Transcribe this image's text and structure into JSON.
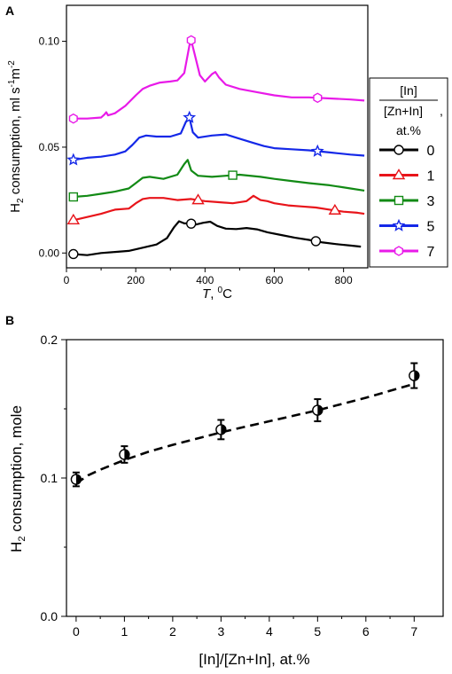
{
  "chart_data": [
    {
      "panel_label": "A",
      "type": "line",
      "xlabel": "T, °C",
      "xlabel_parts": {
        "var": "T",
        "sep": ", ",
        "sup": "0",
        "unit": "C"
      },
      "ylabel": "H2 consumption, ml s-1m-2",
      "xlim": [
        0,
        870
      ],
      "ylim": [
        -0.007,
        0.117
      ],
      "x_ticks": [
        0,
        200,
        400,
        600,
        800
      ],
      "y_ticks": [
        0.0,
        0.05,
        0.1
      ],
      "y_tick_labels": [
        "0.00",
        "0.05",
        "0.10"
      ],
      "legend": {
        "placement": "right",
        "title_line1": "[In]",
        "title_line2": "[Zn+In]",
        "title_line3": "at.%",
        "title": "[In] / [Zn+In], at.%"
      },
      "series": [
        {
          "name": "0",
          "color": "#000000",
          "marker": "circle",
          "x": [
            20,
            60,
            100,
            140,
            180,
            220,
            260,
            290,
            310,
            325,
            340,
            355,
            375,
            395,
            415,
            435,
            460,
            490,
            520,
            550,
            580,
            620,
            660,
            700,
            740,
            780,
            820,
            850
          ],
          "y": [
            -0.0005,
            -0.001,
            0.0,
            0.0005,
            0.001,
            0.0025,
            0.004,
            0.007,
            0.012,
            0.015,
            0.014,
            0.014,
            0.0135,
            0.0143,
            0.0148,
            0.0128,
            0.0115,
            0.0113,
            0.0118,
            0.0112,
            0.0098,
            0.0085,
            0.0072,
            0.0062,
            0.005,
            0.0042,
            0.0035,
            0.003
          ],
          "marker_x": [
            20,
            360,
            720
          ]
        },
        {
          "name": "1",
          "color": "#e8141a",
          "marker": "triangle",
          "x": [
            20,
            60,
            100,
            140,
            180,
            200,
            220,
            240,
            280,
            320,
            360,
            400,
            440,
            480,
            520,
            540,
            560,
            580,
            600,
            640,
            680,
            720,
            760,
            800,
            840,
            860
          ],
          "y": [
            0.0155,
            0.017,
            0.0185,
            0.0205,
            0.021,
            0.0235,
            0.0255,
            0.026,
            0.026,
            0.025,
            0.0255,
            0.0245,
            0.024,
            0.0235,
            0.0245,
            0.027,
            0.025,
            0.0245,
            0.0235,
            0.0225,
            0.022,
            0.0215,
            0.0205,
            0.0195,
            0.019,
            0.0185
          ],
          "marker_x": [
            20,
            380,
            775
          ]
        },
        {
          "name": "3",
          "color": "#128a15",
          "marker": "square",
          "x": [
            20,
            60,
            100,
            140,
            180,
            200,
            220,
            240,
            280,
            320,
            340,
            350,
            360,
            380,
            420,
            460,
            500,
            560,
            600,
            650,
            700,
            760,
            820,
            860
          ],
          "y": [
            0.0265,
            0.027,
            0.028,
            0.029,
            0.0305,
            0.033,
            0.0355,
            0.036,
            0.035,
            0.037,
            0.042,
            0.044,
            0.039,
            0.0365,
            0.036,
            0.0365,
            0.037,
            0.036,
            0.035,
            0.034,
            0.033,
            0.032,
            0.0305,
            0.0295
          ],
          "marker_x": [
            20,
            480
          ]
        },
        {
          "name": "5",
          "color": "#1428e8",
          "marker": "star",
          "x": [
            20,
            60,
            100,
            140,
            170,
            190,
            210,
            230,
            260,
            300,
            330,
            345,
            355,
            365,
            380,
            420,
            460,
            500,
            540,
            570,
            600,
            650,
            700,
            760,
            820,
            860
          ],
          "y": [
            0.044,
            0.045,
            0.0455,
            0.0465,
            0.048,
            0.051,
            0.0545,
            0.0555,
            0.055,
            0.055,
            0.0565,
            0.062,
            0.064,
            0.057,
            0.0545,
            0.0555,
            0.056,
            0.054,
            0.052,
            0.0505,
            0.0495,
            0.049,
            0.0485,
            0.0475,
            0.0465,
            0.046
          ],
          "marker_x": [
            20,
            355,
            725
          ]
        },
        {
          "name": "7",
          "color": "#e81ae8",
          "marker": "hexagon",
          "x": [
            20,
            60,
            100,
            110,
            115,
            120,
            140,
            170,
            200,
            220,
            240,
            270,
            300,
            320,
            340,
            355,
            360,
            370,
            385,
            400,
            420,
            430,
            440,
            460,
            500,
            550,
            600,
            650,
            700,
            760,
            820,
            860
          ],
          "y": [
            0.0635,
            0.0635,
            0.064,
            0.0655,
            0.0665,
            0.065,
            0.066,
            0.0695,
            0.0745,
            0.0775,
            0.079,
            0.0805,
            0.081,
            0.0815,
            0.085,
            0.098,
            0.1005,
            0.094,
            0.084,
            0.081,
            0.0845,
            0.0855,
            0.083,
            0.0795,
            0.0775,
            0.076,
            0.0745,
            0.0735,
            0.0735,
            0.073,
            0.0725,
            0.072
          ],
          "marker_x": [
            20,
            360,
            725
          ]
        }
      ]
    },
    {
      "panel_label": "B",
      "type": "scatter",
      "xlabel": "[In]/[Zn+In], at.%",
      "ylabel": "H2 consumption, mole",
      "xlim": [
        -0.2,
        7.6
      ],
      "ylim": [
        0.0,
        0.2
      ],
      "x_ticks": [
        0,
        1,
        2,
        3,
        4,
        5,
        6,
        7
      ],
      "y_ticks": [
        0.0,
        0.1,
        0.2
      ],
      "y_tick_labels": [
        "0.0",
        "0.1",
        "0.2"
      ],
      "grid": false,
      "series": [
        {
          "name": "",
          "color": "#000000",
          "marker": "half-filled-circle",
          "x": [
            0,
            1,
            3,
            5,
            7
          ],
          "y": [
            0.099,
            0.117,
            0.135,
            0.149,
            0.174
          ],
          "error": [
            0.005,
            0.006,
            0.007,
            0.008,
            0.009
          ]
        }
      ],
      "fit": {
        "style": "dashed",
        "color": "#000000",
        "x": [
          0.0,
          0.25,
          0.5,
          1.0,
          1.5,
          2.0,
          3.0,
          4.0,
          5.0,
          6.0,
          7.0
        ],
        "y": [
          0.096,
          0.102,
          0.106,
          0.113,
          0.119,
          0.124,
          0.133,
          0.141,
          0.149,
          0.158,
          0.168
        ]
      }
    }
  ]
}
